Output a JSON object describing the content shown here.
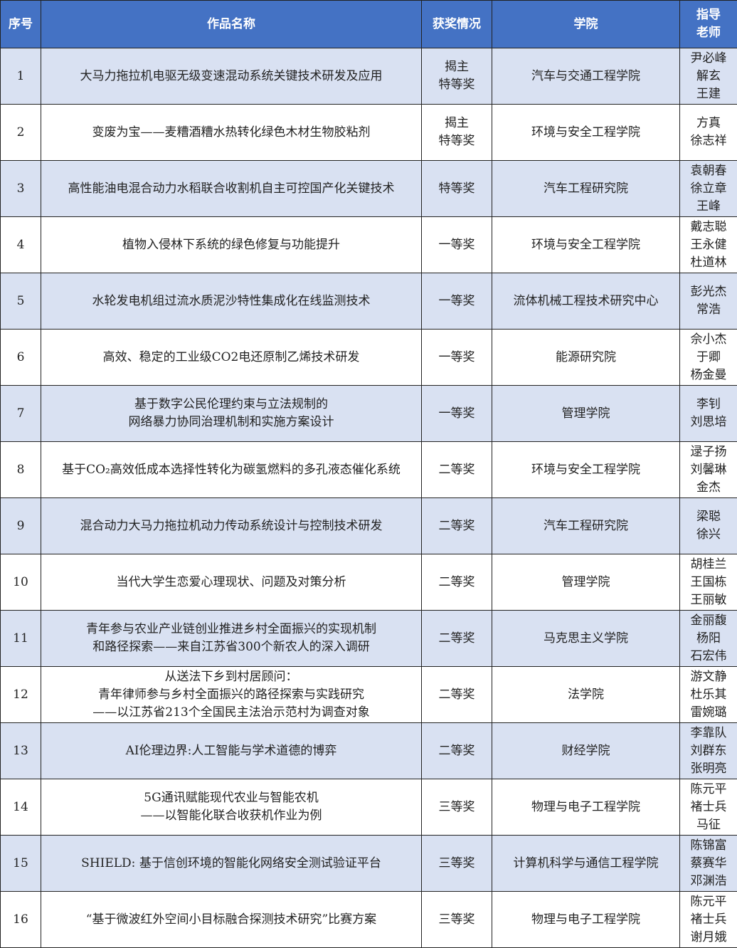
{
  "colors": {
    "header_bg": "#4472C4",
    "row_shade": "#D9E1F2"
  },
  "headers": [
    "序号",
    "作品名称",
    "获奖情况",
    "学院",
    "指导\n老师"
  ],
  "rows": [
    {
      "no": "1",
      "title": "大马力拖拉机电驱无级变速混动系统关键技术研发及应用",
      "award": "揭主\n特等奖",
      "college": "汽车与交通工程学院",
      "advisors": "尹必峰\n解玄\n王建"
    },
    {
      "no": "2",
      "title": "变废为宝——麦糟酒糟水热转化绿色木材生物胶粘剂",
      "award": "揭主\n特等奖",
      "college": "环境与安全工程学院",
      "advisors": "方真\n徐志祥"
    },
    {
      "no": "3",
      "title": "高性能油电混合动力水稻联合收割机自主可控国产化关键技术",
      "award": "特等奖",
      "college": "汽车工程研究院",
      "advisors": "袁朝春\n徐立章\n王峰"
    },
    {
      "no": "4",
      "title": "植物入侵林下系统的绿色修复与功能提升",
      "award": "一等奖",
      "college": "环境与安全工程学院",
      "advisors": "戴志聪\n王永健\n杜道林"
    },
    {
      "no": "5",
      "title": "水轮发电机组过流水质泥沙特性集成化在线监测技术",
      "award": "一等奖",
      "college": "流体机械工程技术研究中心",
      "advisors": "彭光杰\n常浩"
    },
    {
      "no": "6",
      "title": "高效、稳定的工业级CO2电还原制乙烯技术研发",
      "award": "一等奖",
      "college": "能源研究院",
      "advisors": "佘小杰\n于卿\n杨金曼"
    },
    {
      "no": "7",
      "title": "基于数字公民伦理约束与立法规制的\n网络暴力协同治理机制和实施方案设计",
      "award": "一等奖",
      "college": "管理学院",
      "advisors": "李钊\n刘思培"
    },
    {
      "no": "8",
      "title": "基于CO₂高效低成本选择性转化为碳氢燃料的多孔液态催化系统",
      "award": "二等奖",
      "college": "环境与安全工程学院",
      "advisors": "逯子扬\n刘馨琳\n金杰"
    },
    {
      "no": "9",
      "title": "混合动力大马力拖拉机动力传动系统设计与控制技术研发",
      "award": "二等奖",
      "college": "汽车工程研究院",
      "advisors": "梁聪\n徐兴"
    },
    {
      "no": "10",
      "title": "当代大学生恋爱心理现状、问题及对策分析",
      "award": "二等奖",
      "college": "管理学院",
      "advisors": "胡桂兰\n王国栋\n王丽敏"
    },
    {
      "no": "11",
      "title": "青年参与农业产业链创业推进乡村全面振兴的实现机制\n和路径探索——来自江苏省300个新农人的深入调研",
      "award": "二等奖",
      "college": "马克思主义学院",
      "advisors": "金丽馥\n杨阳\n石宏伟"
    },
    {
      "no": "12",
      "title": "从送法下乡到村居顾问：\n青年律师参与乡村全面振兴的路径探索与实践研究\n——以江苏省213个全国民主法治示范村为调查对象",
      "award": "二等奖",
      "college": "法学院",
      "advisors": "游文静\n杜乐其\n雷婉璐"
    },
    {
      "no": "13",
      "title": "AI伦理边界:人工智能与学术道德的博弈",
      "award": "二等奖",
      "college": "财经学院",
      "advisors": "李靠队\n刘群东\n张明亮"
    },
    {
      "no": "14",
      "title": "5G通讯赋能现代农业与智能农机\n——以智能化联合收获机作业为例",
      "award": "三等奖",
      "college": "物理与电子工程学院",
      "advisors": "陈元平\n褚士兵\n马征"
    },
    {
      "no": "15",
      "title": "SHIELD: 基于信创环境的智能化网络安全测试验证平台",
      "award": "三等奖",
      "college": "计算机科学与通信工程学院",
      "advisors": "陈锦富\n蔡赛华\n邓渊浩"
    },
    {
      "no": "16",
      "title": "“基于微波红外空间小目标融合探测技术研究”比赛方案",
      "award": "三等奖",
      "college": "物理与电子工程学院",
      "advisors": "陈元平\n褚士兵\n谢月娥"
    }
  ]
}
